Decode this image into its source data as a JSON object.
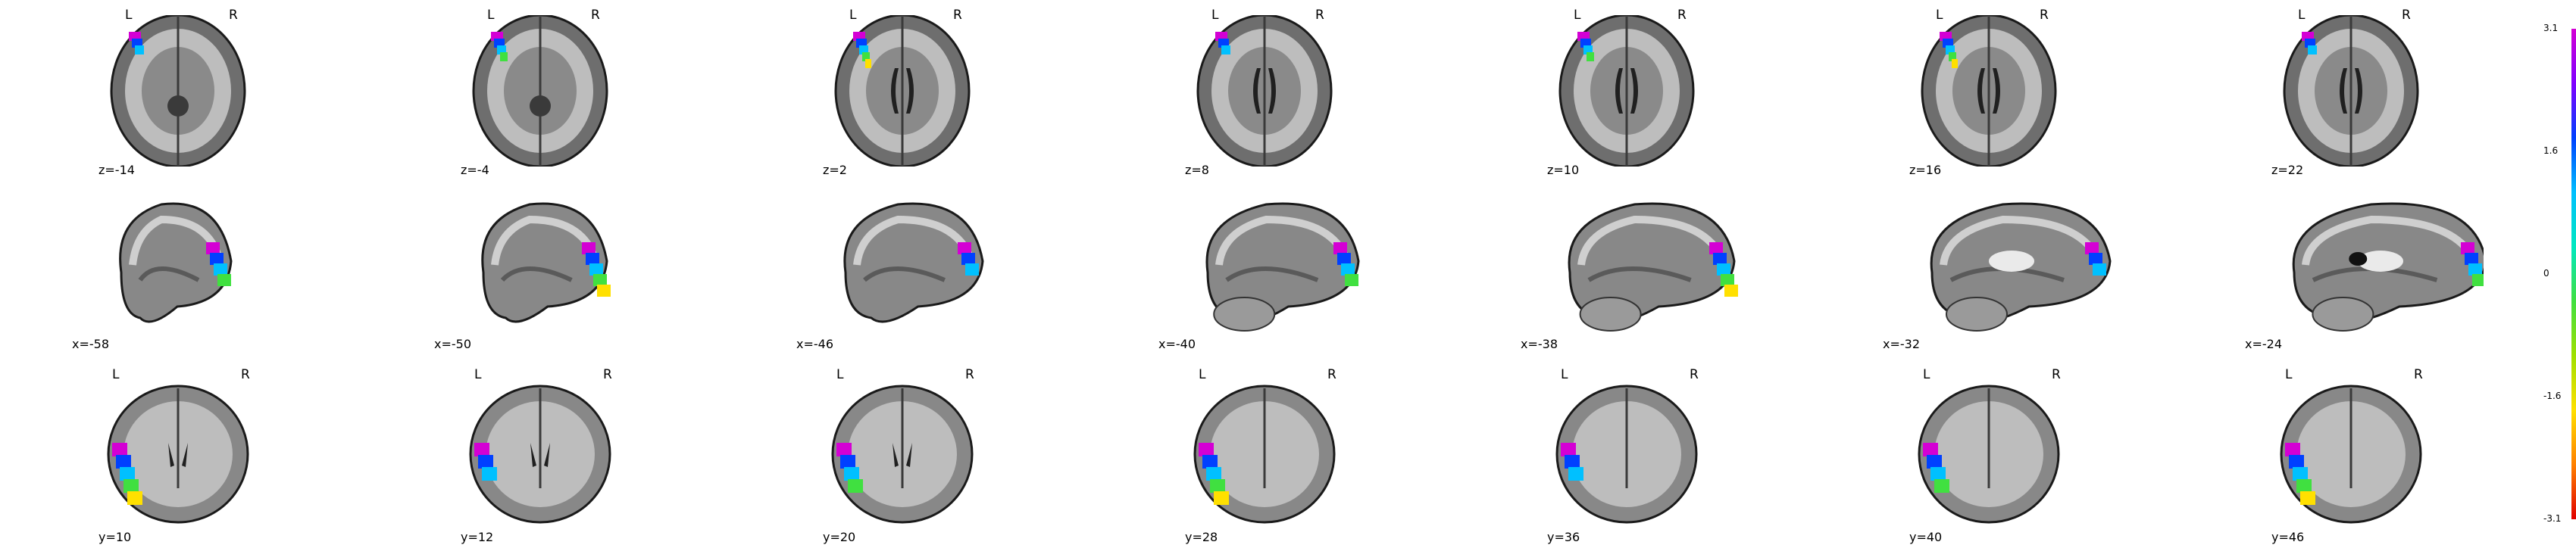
{
  "orientation": {
    "left": "L",
    "right": "R"
  },
  "rows": [
    {
      "view": "axial",
      "labels": [
        "z=-14",
        "z=-4",
        "z=2",
        "z=8",
        "z=10",
        "z=16",
        "z=22"
      ]
    },
    {
      "view": "sagittal",
      "labels": [
        "x=-58",
        "x=-50",
        "x=-46",
        "x=-40",
        "x=-38",
        "x=-32",
        "x=-24"
      ]
    },
    {
      "view": "coronal",
      "labels": [
        "y=10",
        "y=12",
        "y=20",
        "y=28",
        "y=36",
        "y=40",
        "y=46"
      ]
    }
  ],
  "colorbar": {
    "ticks": [
      "3.1",
      "1.6",
      "0",
      "-1.6",
      "-3.1"
    ],
    "colors": [
      "#d400d4",
      "#8000ff",
      "#0040ff",
      "#00c0ff",
      "#00e8c0",
      "#40e040",
      "#a0e000",
      "#ffe000",
      "#ff8000",
      "#e00000"
    ]
  }
}
